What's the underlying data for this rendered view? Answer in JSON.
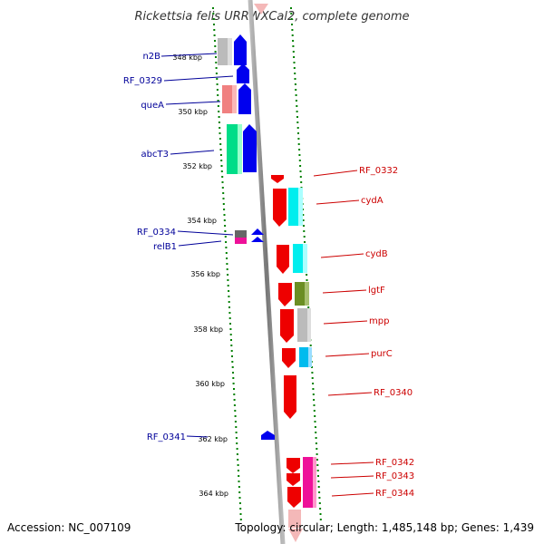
{
  "title": "Rickettsia felis URRWXCal2, complete genome",
  "footer": {
    "accession": "Accession: NC_007109",
    "topology": "Topology: circular; Length: 1,485,148 bp; Genes: 1,439"
  },
  "scale_labels": [
    "348 kbp",
    "350 kbp",
    "352 kbp",
    "354 kbp",
    "356 kbp",
    "358 kbp",
    "360 kbp",
    "362 kbp",
    "364 kbp"
  ],
  "left_genes": [
    "n2B",
    "RF_0329",
    "queA",
    "abcT3",
    "RF_0334",
    "relB1",
    "RF_0341"
  ],
  "right_genes": [
    "RF_0332",
    "cydA",
    "cydB",
    "lgtF",
    "mpp",
    "purC",
    "RF_0340",
    "RF_0342",
    "RF_0343",
    "RF_0344"
  ],
  "colors": {
    "forward_strand": "#0000ee",
    "reverse_strand": "#ee0000",
    "left_label": "#000099",
    "right_label": "#cc0000",
    "tick": "#008000",
    "backbone": "#888888"
  }
}
